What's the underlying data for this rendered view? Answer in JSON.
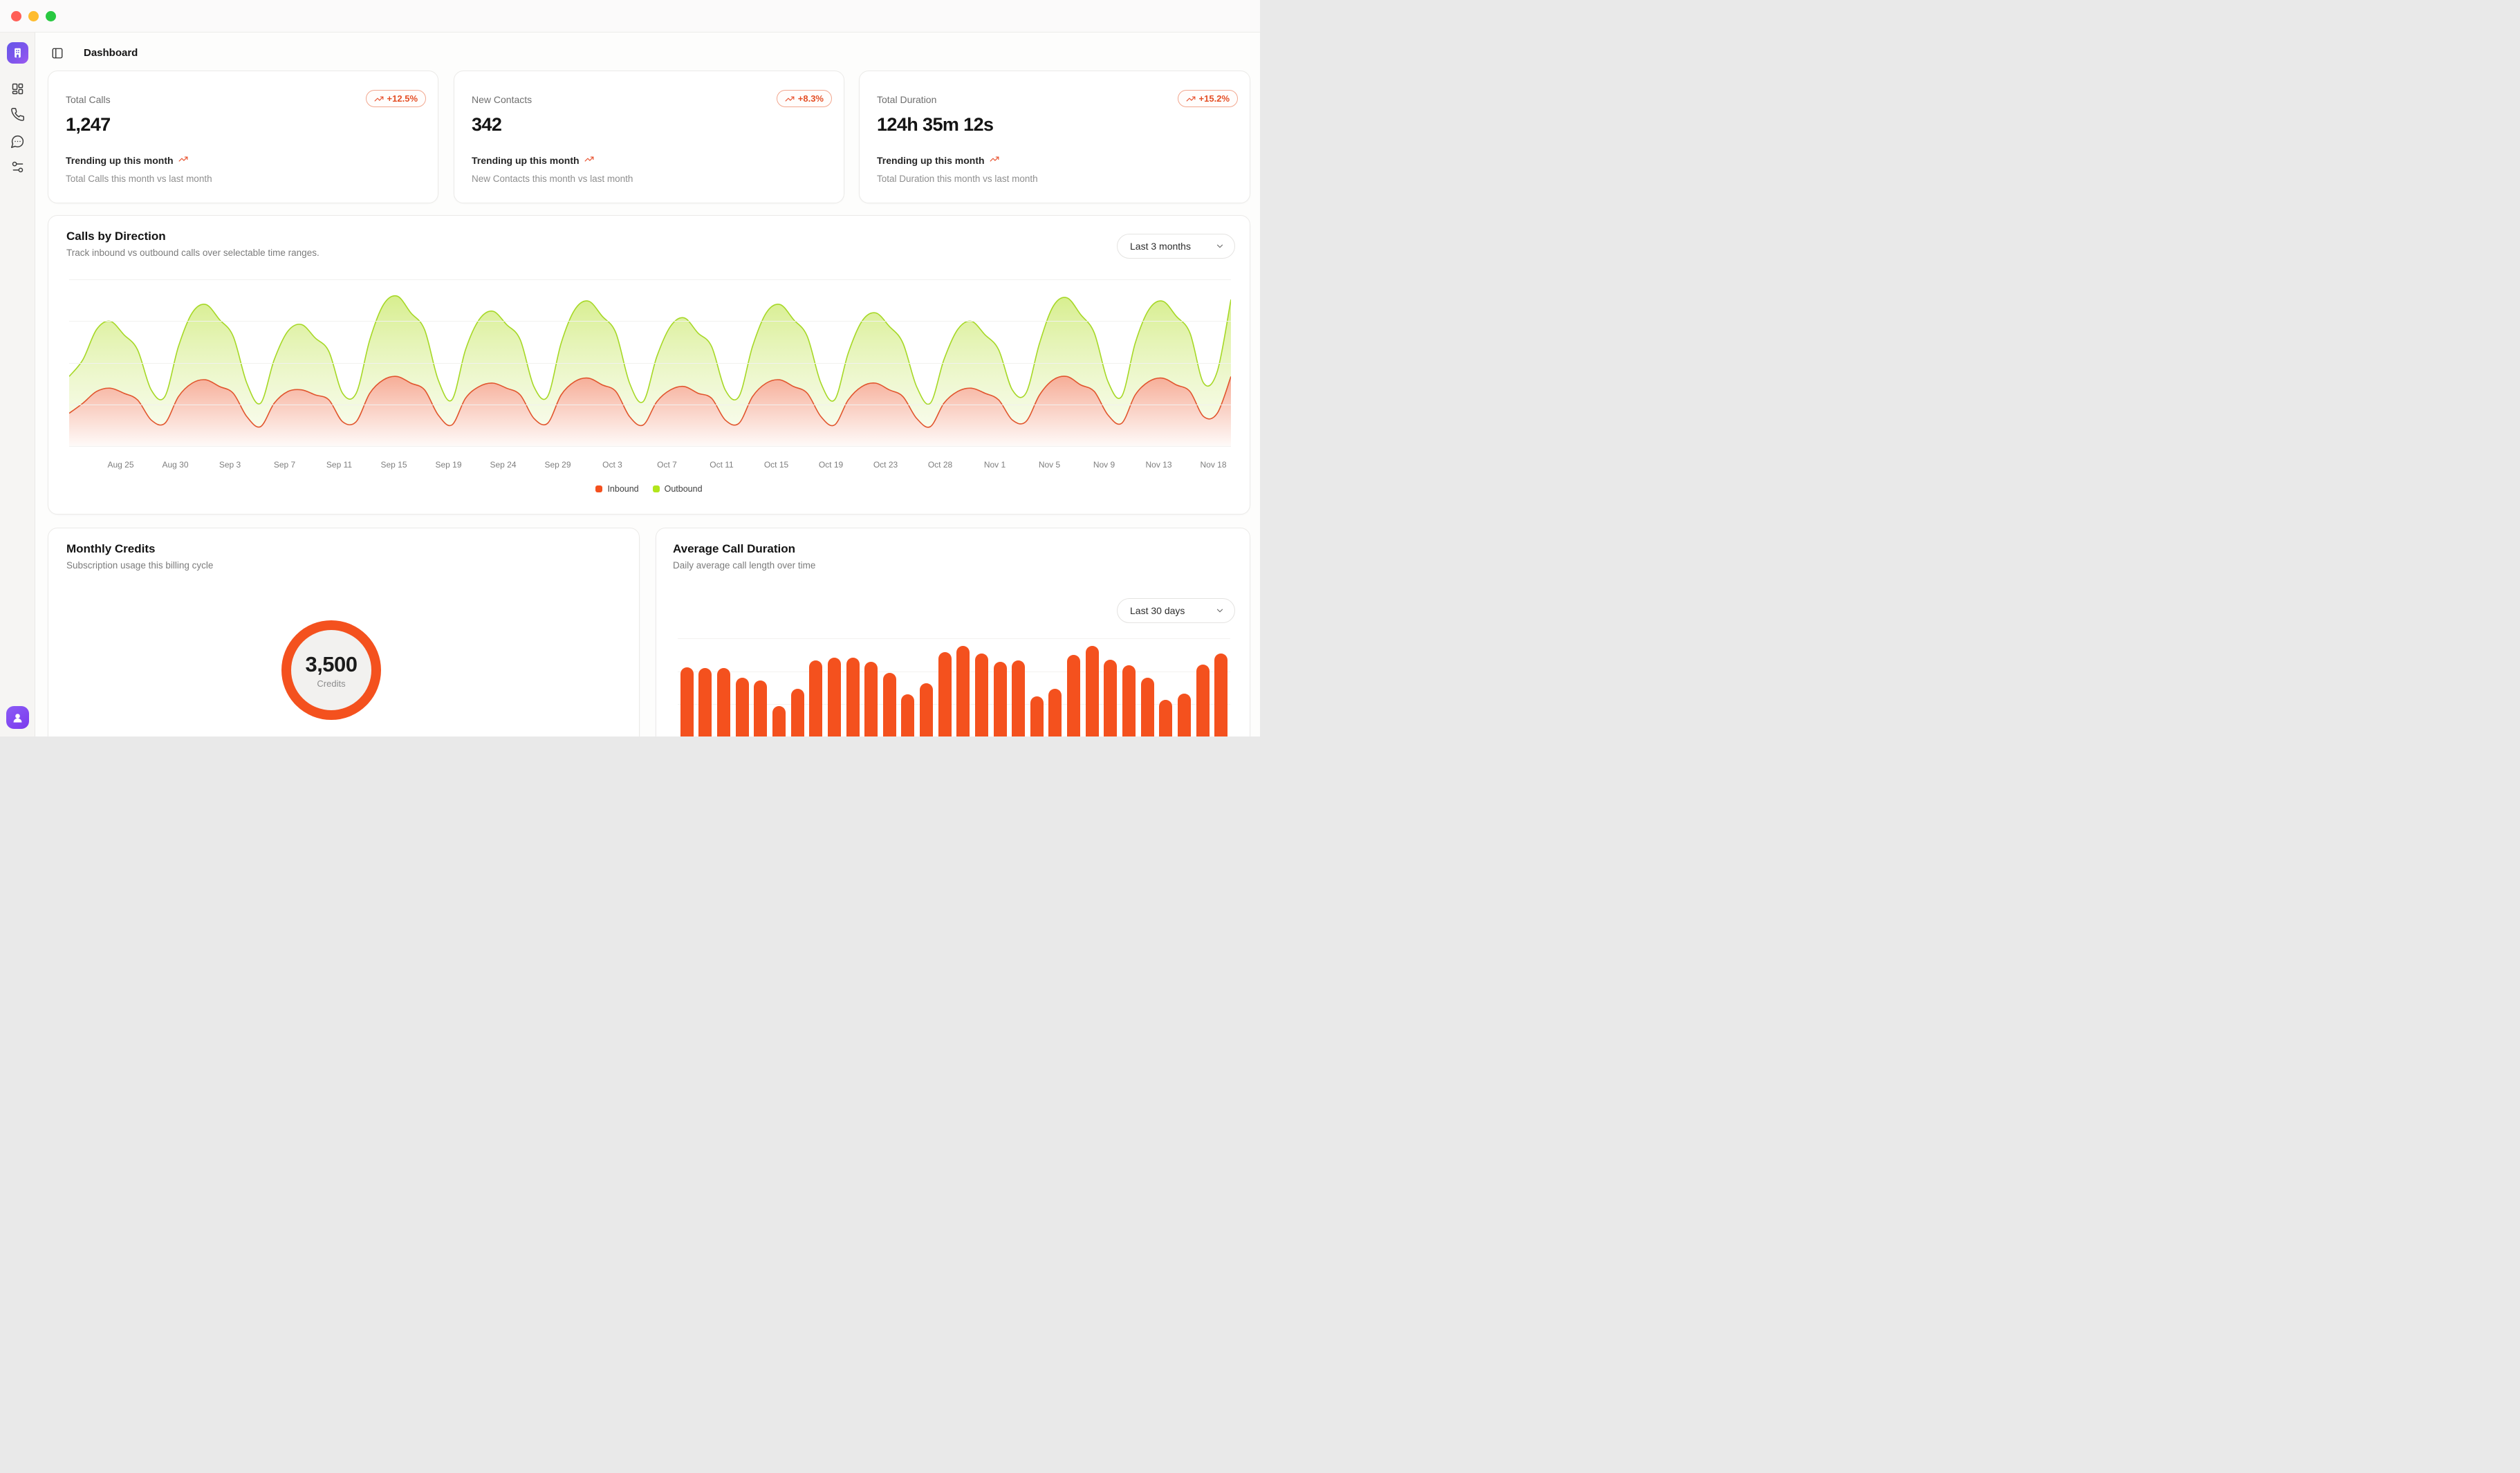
{
  "theme": {
    "accent": "#f4511e",
    "inbound_color": "#e8552f",
    "outbound_color": "#a6d826",
    "inbound_swatch": "#f4501e",
    "outbound_swatch": "#b2e51c",
    "content_bg": "#fdfdfc"
  },
  "window": {
    "page_title": "Dashboard"
  },
  "sidebar": {
    "items": [
      {
        "icon": "dashboard-grid"
      },
      {
        "icon": "phone"
      },
      {
        "icon": "chat-bubble"
      },
      {
        "icon": "settings-sliders"
      }
    ],
    "footer": {
      "icon": "user-avatar"
    }
  },
  "stat_cards": [
    {
      "label": "Total Calls",
      "value": "1,247",
      "badge": "+12.5%",
      "trend_text": "Trending up this month",
      "sub_text": "Total Calls this month vs last month"
    },
    {
      "label": "New Contacts",
      "value": "342",
      "badge": "+8.3%",
      "trend_text": "Trending up this month",
      "sub_text": "New Contacts this month vs last month"
    },
    {
      "label": "Total Duration",
      "value": "124h 35m 12s",
      "badge": "+15.2%",
      "trend_text": "Trending up this month",
      "sub_text": "Total Duration this month vs last month"
    }
  ],
  "calls_chart": {
    "title": "Calls by Direction",
    "subtitle": "Track inbound vs outbound calls over selectable time ranges.",
    "range_label": "Last 3 months",
    "legend": [
      {
        "label": "Inbound",
        "color": "#f4501e"
      },
      {
        "label": "Outbound",
        "color": "#b2e51c"
      }
    ],
    "chart_data": {
      "type": "area",
      "stacked": true,
      "x_range": "Aug 25 - Nov 18 (daily)",
      "x_ticks": [
        "Aug 25",
        "Aug 30",
        "Sep 3",
        "Sep 7",
        "Sep 11",
        "Sep 15",
        "Sep 19",
        "Sep 24",
        "Sep 29",
        "Oct 3",
        "Oct 7",
        "Oct 11",
        "Oct 15",
        "Oct 19",
        "Oct 23",
        "Oct 28",
        "Nov 1",
        "Nov 5",
        "Nov 9",
        "Nov 13",
        "Nov 18"
      ],
      "ylabel": "calls (axis unlabeled, relative units 0-100)",
      "ylim": [
        0,
        100
      ],
      "grid": true,
      "legend_position": "bottom-center",
      "series": [
        {
          "name": "Inbound",
          "values": [
            20,
            26,
            33,
            35,
            32,
            28,
            16,
            14,
            30,
            38,
            40,
            36,
            32,
            18,
            12,
            26,
            33,
            34,
            31,
            28,
            15,
            15,
            32,
            40,
            42,
            38,
            34,
            19,
            13,
            29,
            36,
            38,
            35,
            31,
            17,
            14,
            31,
            39,
            41,
            37,
            33,
            18,
            13,
            27,
            34,
            36,
            32,
            29,
            16,
            14,
            30,
            38,
            40,
            36,
            32,
            18,
            13,
            28,
            36,
            38,
            34,
            30,
            17,
            12,
            26,
            33,
            35,
            32,
            28,
            16,
            15,
            31,
            40,
            42,
            37,
            33,
            19,
            14,
            31,
            39,
            41,
            37,
            33,
            18,
            20,
            42
          ]
        },
        {
          "name": "Outbound",
          "values": [
            22,
            26,
            37,
            40,
            35,
            30,
            18,
            16,
            30,
            42,
            45,
            40,
            34,
            20,
            14,
            26,
            36,
            39,
            34,
            29,
            17,
            17,
            32,
            45,
            48,
            42,
            36,
            21,
            15,
            29,
            40,
            43,
            38,
            33,
            19,
            16,
            31,
            43,
            46,
            41,
            35,
            20,
            14,
            27,
            38,
            41,
            36,
            31,
            18,
            16,
            30,
            42,
            45,
            40,
            34,
            20,
            15,
            28,
            39,
            42,
            38,
            32,
            19,
            14,
            26,
            37,
            40,
            35,
            30,
            18,
            17,
            31,
            44,
            47,
            42,
            35,
            20,
            16,
            31,
            43,
            46,
            41,
            35,
            20,
            25,
            46
          ]
        }
      ]
    }
  },
  "credits_card": {
    "title": "Monthly Credits",
    "subtitle": "Subscription usage this billing cycle",
    "value": "3,500",
    "unit": "Credits"
  },
  "duration_chart": {
    "title": "Average Call Duration",
    "subtitle": "Daily average call length over time",
    "range_label": "Last 30 days",
    "chart_data": {
      "type": "bar",
      "x_range": "last 30 days (daily, axis unlabeled)",
      "ylabel": "average duration (axis unlabeled, relative units 0-100)",
      "grid": true,
      "bar_color": "#f4511e",
      "values": [
        75,
        74,
        74,
        64,
        61,
        33,
        52,
        82,
        85,
        85,
        81,
        69,
        46,
        58,
        91,
        98,
        90,
        81,
        82,
        44,
        52,
        88,
        98,
        83,
        77,
        64,
        40,
        47,
        78,
        90
      ]
    }
  }
}
